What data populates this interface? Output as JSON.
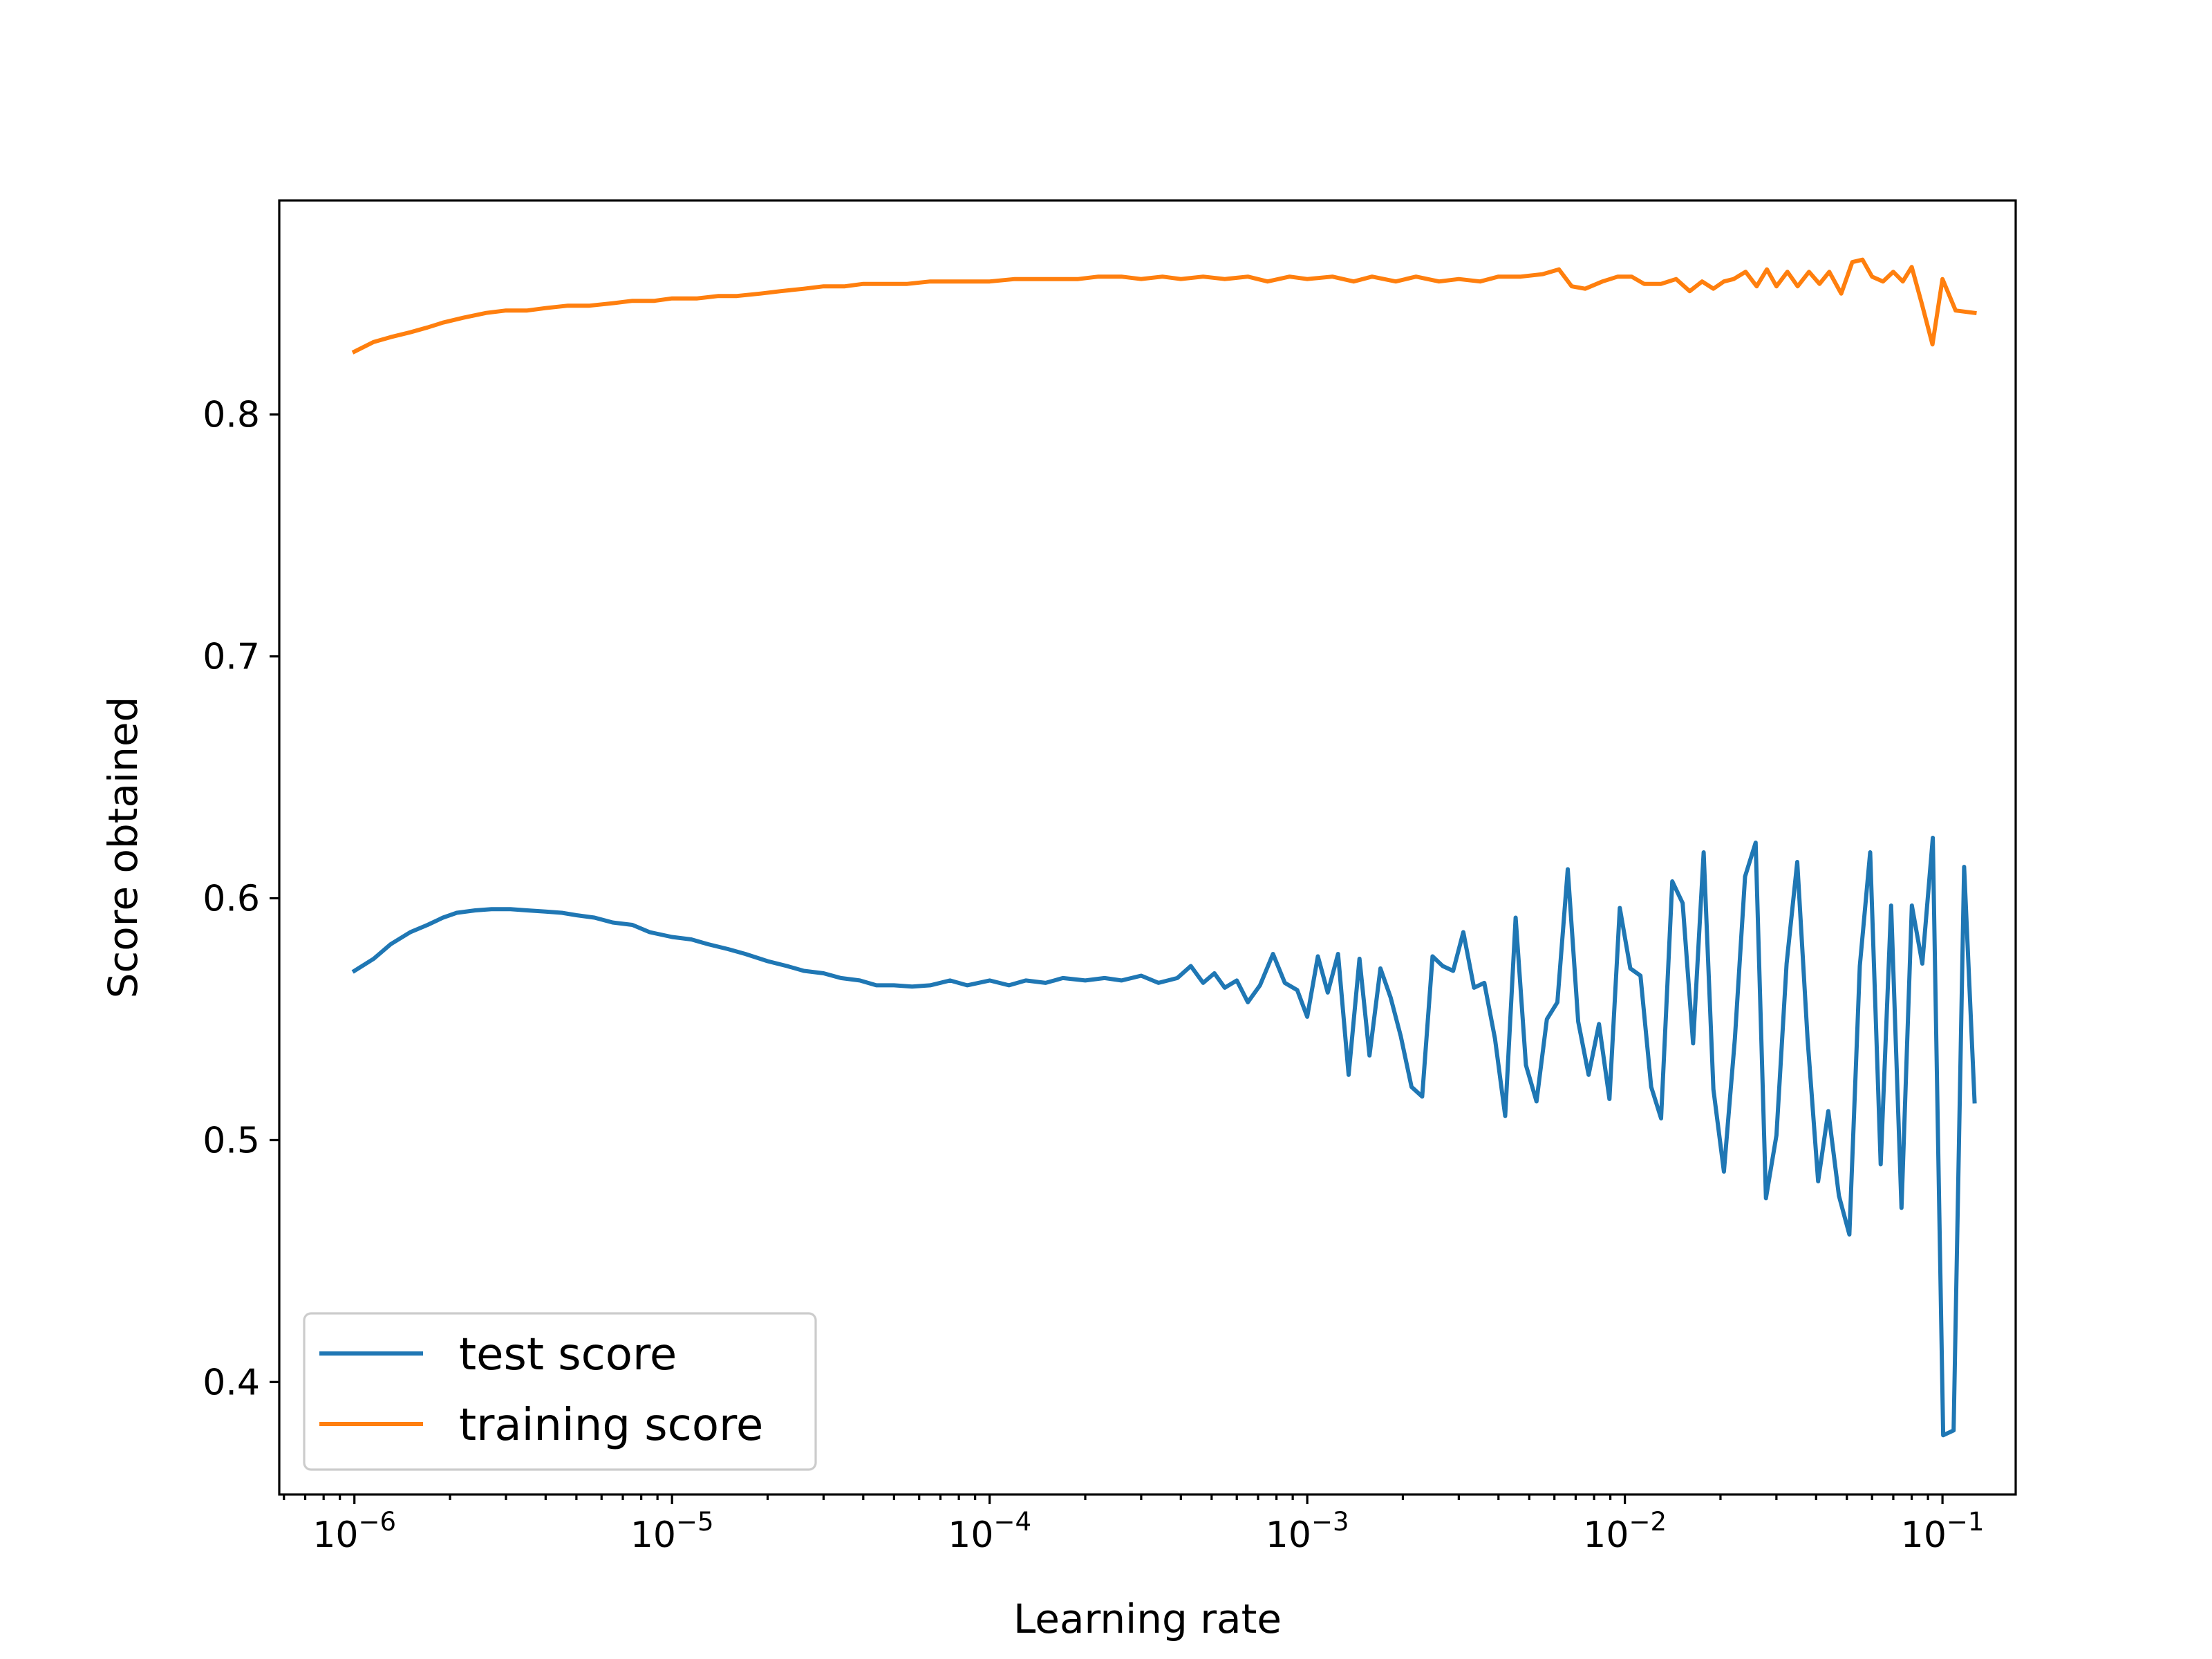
{
  "chart_data": {
    "type": "line",
    "title": "",
    "xlabel": "Learning rate",
    "ylabel": "Score obtained",
    "xscale": "log",
    "xlim": [
      5.8e-07,
      0.17
    ],
    "ylim": [
      0.3535,
      0.8885
    ],
    "grid": false,
    "legend_position": "lower-left",
    "x_ticks": [
      {
        "value": 1e-06,
        "base": "10",
        "exp": "−6"
      },
      {
        "value": 1e-05,
        "base": "10",
        "exp": "−5"
      },
      {
        "value": 0.0001,
        "base": "10",
        "exp": "−4"
      },
      {
        "value": 0.001,
        "base": "10",
        "exp": "−3"
      },
      {
        "value": 0.01,
        "base": "10",
        "exp": "−2"
      },
      {
        "value": 0.1,
        "base": "10",
        "exp": "−1"
      }
    ],
    "y_ticks": [
      {
        "value": 0.4,
        "label": "0.4"
      },
      {
        "value": 0.5,
        "label": "0.5"
      },
      {
        "value": 0.6,
        "label": "0.6"
      },
      {
        "value": 0.7,
        "label": "0.7"
      },
      {
        "value": 0.8,
        "label": "0.8"
      }
    ],
    "series": [
      {
        "name": "test score",
        "color": "#1f77b4",
        "points": [
          [
            1e-06,
            0.57
          ],
          [
            1.15e-06,
            0.575
          ],
          [
            1.3e-06,
            0.581
          ],
          [
            1.5e-06,
            0.586
          ],
          [
            1.7e-06,
            0.589
          ],
          [
            1.9e-06,
            0.592
          ],
          [
            2.1e-06,
            0.594
          ],
          [
            2.4e-06,
            0.595
          ],
          [
            2.7e-06,
            0.5955
          ],
          [
            3.1e-06,
            0.5955
          ],
          [
            3.5e-06,
            0.595
          ],
          [
            4e-06,
            0.5945
          ],
          [
            4.5e-06,
            0.594
          ],
          [
            5e-06,
            0.593
          ],
          [
            5.7e-06,
            0.592
          ],
          [
            6.5e-06,
            0.59
          ],
          [
            7.5e-06,
            0.589
          ],
          [
            8.5e-06,
            0.586
          ],
          [
            1e-05,
            0.584
          ],
          [
            1.15e-05,
            0.583
          ],
          [
            1.3e-05,
            0.581
          ],
          [
            1.5e-05,
            0.579
          ],
          [
            1.7e-05,
            0.577
          ],
          [
            2e-05,
            0.574
          ],
          [
            2.3e-05,
            0.572
          ],
          [
            2.6e-05,
            0.57
          ],
          [
            3e-05,
            0.569
          ],
          [
            3.4e-05,
            0.567
          ],
          [
            3.9e-05,
            0.566
          ],
          [
            4.4e-05,
            0.564
          ],
          [
            5e-05,
            0.564
          ],
          [
            5.7e-05,
            0.5635
          ],
          [
            6.5e-05,
            0.564
          ],
          [
            7.5e-05,
            0.566
          ],
          [
            8.5e-05,
            0.564
          ],
          [
            0.0001,
            0.566
          ],
          [
            0.000115,
            0.564
          ],
          [
            0.00013,
            0.566
          ],
          [
            0.00015,
            0.565
          ],
          [
            0.00017,
            0.567
          ],
          [
            0.0002,
            0.566
          ],
          [
            0.00023,
            0.567
          ],
          [
            0.00026,
            0.566
          ],
          [
            0.0003,
            0.568
          ],
          [
            0.00034,
            0.565
          ],
          [
            0.00039,
            0.567
          ],
          [
            0.00043,
            0.572
          ],
          [
            0.00047,
            0.565
          ],
          [
            0.00051,
            0.569
          ],
          [
            0.00055,
            0.563
          ],
          [
            0.0006,
            0.566
          ],
          [
            0.00065,
            0.557
          ],
          [
            0.00071,
            0.564
          ],
          [
            0.00078,
            0.577
          ],
          [
            0.00085,
            0.565
          ],
          [
            0.00093,
            0.562
          ],
          [
            0.001,
            0.551
          ],
          [
            0.00108,
            0.576
          ],
          [
            0.00116,
            0.561
          ],
          [
            0.00125,
            0.577
          ],
          [
            0.00135,
            0.527
          ],
          [
            0.00146,
            0.575
          ],
          [
            0.00157,
            0.535
          ],
          [
            0.0017,
            0.571
          ],
          [
            0.00183,
            0.559
          ],
          [
            0.00197,
            0.543
          ],
          [
            0.00213,
            0.522
          ],
          [
            0.0023,
            0.518
          ],
          [
            0.00248,
            0.576
          ],
          [
            0.00267,
            0.572
          ],
          [
            0.00288,
            0.57
          ],
          [
            0.0031,
            0.586
          ],
          [
            0.00335,
            0.563
          ],
          [
            0.00361,
            0.565
          ],
          [
            0.0039,
            0.542
          ],
          [
            0.0042,
            0.51
          ],
          [
            0.00453,
            0.592
          ],
          [
            0.00488,
            0.531
          ],
          [
            0.00527,
            0.516
          ],
          [
            0.00568,
            0.55
          ],
          [
            0.00613,
            0.557
          ],
          [
            0.00661,
            0.612
          ],
          [
            0.00713,
            0.549
          ],
          [
            0.00769,
            0.527
          ],
          [
            0.00829,
            0.548
          ],
          [
            0.00894,
            0.517
          ],
          [
            0.00964,
            0.596
          ],
          [
            0.0104,
            0.571
          ],
          [
            0.0112,
            0.568
          ],
          [
            0.0121,
            0.522
          ],
          [
            0.013,
            0.509
          ],
          [
            0.0141,
            0.607
          ],
          [
            0.0152,
            0.598
          ],
          [
            0.0164,
            0.54
          ],
          [
            0.0177,
            0.619
          ],
          [
            0.019,
            0.521
          ],
          [
            0.0205,
            0.487
          ],
          [
            0.0222,
            0.542
          ],
          [
            0.0239,
            0.609
          ],
          [
            0.0258,
            0.623
          ],
          [
            0.0278,
            0.476
          ],
          [
            0.03,
            0.502
          ],
          [
            0.0323,
            0.573
          ],
          [
            0.0349,
            0.615
          ],
          [
            0.0376,
            0.542
          ],
          [
            0.0406,
            0.483
          ],
          [
            0.0437,
            0.512
          ],
          [
            0.0472,
            0.477
          ],
          [
            0.0509,
            0.461
          ],
          [
            0.0549,
            0.572
          ],
          [
            0.0592,
            0.619
          ],
          [
            0.0639,
            0.49
          ],
          [
            0.0689,
            0.597
          ],
          [
            0.0743,
            0.472
          ],
          [
            0.0801,
            0.597
          ],
          [
            0.0864,
            0.573
          ],
          [
            0.0932,
            0.625
          ],
          [
            0.1005,
            0.378
          ],
          [
            0.1084,
            0.38
          ],
          [
            0.117,
            0.613
          ],
          [
            0.1262,
            0.516
          ]
        ]
      },
      {
        "name": "training score",
        "color": "#ff7f0e",
        "points": [
          [
            1e-06,
            0.826
          ],
          [
            1.15e-06,
            0.83
          ],
          [
            1.3e-06,
            0.832
          ],
          [
            1.5e-06,
            0.834
          ],
          [
            1.7e-06,
            0.836
          ],
          [
            1.9e-06,
            0.838
          ],
          [
            2.2e-06,
            0.84
          ],
          [
            2.6e-06,
            0.842
          ],
          [
            3e-06,
            0.843
          ],
          [
            3.5e-06,
            0.843
          ],
          [
            4e-06,
            0.844
          ],
          [
            4.7e-06,
            0.845
          ],
          [
            5.5e-06,
            0.845
          ],
          [
            6.5e-06,
            0.846
          ],
          [
            7.5e-06,
            0.847
          ],
          [
            8.8e-06,
            0.847
          ],
          [
            1e-05,
            0.848
          ],
          [
            1.2e-05,
            0.848
          ],
          [
            1.4e-05,
            0.849
          ],
          [
            1.6e-05,
            0.849
          ],
          [
            1.9e-05,
            0.85
          ],
          [
            2.2e-05,
            0.851
          ],
          [
            2.6e-05,
            0.852
          ],
          [
            3e-05,
            0.853
          ],
          [
            3.5e-05,
            0.853
          ],
          [
            4e-05,
            0.854
          ],
          [
            4.7e-05,
            0.854
          ],
          [
            5.5e-05,
            0.854
          ],
          [
            6.5e-05,
            0.855
          ],
          [
            7.5e-05,
            0.855
          ],
          [
            8.8e-05,
            0.855
          ],
          [
            0.0001,
            0.855
          ],
          [
            0.00012,
            0.856
          ],
          [
            0.00014,
            0.856
          ],
          [
            0.00016,
            0.856
          ],
          [
            0.00019,
            0.856
          ],
          [
            0.00022,
            0.857
          ],
          [
            0.00026,
            0.857
          ],
          [
            0.0003,
            0.856
          ],
          [
            0.00035,
            0.857
          ],
          [
            0.0004,
            0.856
          ],
          [
            0.00047,
            0.857
          ],
          [
            0.00055,
            0.856
          ],
          [
            0.00065,
            0.857
          ],
          [
            0.00075,
            0.855
          ],
          [
            0.00088,
            0.857
          ],
          [
            0.001,
            0.856
          ],
          [
            0.0012,
            0.857
          ],
          [
            0.0014,
            0.855
          ],
          [
            0.0016,
            0.857
          ],
          [
            0.0019,
            0.855
          ],
          [
            0.0022,
            0.857
          ],
          [
            0.0026,
            0.855
          ],
          [
            0.003,
            0.856
          ],
          [
            0.0035,
            0.855
          ],
          [
            0.004,
            0.857
          ],
          [
            0.0047,
            0.857
          ],
          [
            0.0055,
            0.858
          ],
          [
            0.0062,
            0.86
          ],
          [
            0.0068,
            0.853
          ],
          [
            0.0075,
            0.852
          ],
          [
            0.0085,
            0.855
          ],
          [
            0.0095,
            0.857
          ],
          [
            0.0105,
            0.857
          ],
          [
            0.0115,
            0.854
          ],
          [
            0.013,
            0.854
          ],
          [
            0.0145,
            0.856
          ],
          [
            0.016,
            0.851
          ],
          [
            0.0175,
            0.855
          ],
          [
            0.019,
            0.852
          ],
          [
            0.0205,
            0.855
          ],
          [
            0.022,
            0.856
          ],
          [
            0.024,
            0.859
          ],
          [
            0.026,
            0.853
          ],
          [
            0.028,
            0.86
          ],
          [
            0.03,
            0.853
          ],
          [
            0.0325,
            0.859
          ],
          [
            0.035,
            0.853
          ],
          [
            0.038,
            0.859
          ],
          [
            0.041,
            0.854
          ],
          [
            0.044,
            0.859
          ],
          [
            0.048,
            0.85
          ],
          [
            0.052,
            0.863
          ],
          [
            0.056,
            0.864
          ],
          [
            0.06,
            0.857
          ],
          [
            0.065,
            0.855
          ],
          [
            0.07,
            0.859
          ],
          [
            0.075,
            0.855
          ],
          [
            0.08,
            0.861
          ],
          [
            0.086,
            0.846
          ],
          [
            0.093,
            0.829
          ],
          [
            0.1,
            0.856
          ],
          [
            0.11,
            0.843
          ],
          [
            0.1262,
            0.842
          ]
        ]
      }
    ]
  }
}
